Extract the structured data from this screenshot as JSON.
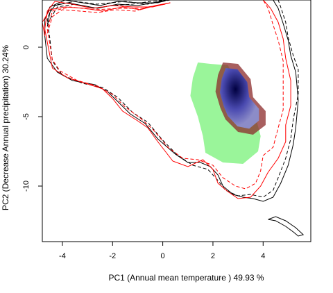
{
  "chart_data": {
    "type": "scatter",
    "title": "",
    "xlabel": "PC1 (Annual mean temperature ) 49.93 %",
    "ylabel": "PC2 (Decrease Annual precipitation) 30.24%",
    "xlim": [
      -4.8,
      5.9
    ],
    "ylim": [
      -14.0,
      3.4
    ],
    "x_ticks": [
      -4,
      -2,
      0,
      2,
      4
    ],
    "y_ticks": [
      0,
      -5,
      -10
    ],
    "x_tick_labels": [
      "-4",
      "-2",
      "0",
      "2",
      "4"
    ],
    "y_tick_labels": [
      "0",
      "-5",
      "-10"
    ],
    "grid": false,
    "colors": {
      "overlap_green": "#9af59a",
      "density_blue": "#1a1a8a",
      "density_red": "#8b2a2a",
      "envelope_black": "#000000",
      "envelope_red": "#ff0000"
    },
    "series": [
      {
        "style": "solid",
        "color": "#000000",
        "points": [
          [
            -4.6,
            1.5
          ],
          [
            -4.5,
            2.5
          ],
          [
            -4.3,
            3.0
          ],
          [
            -3.8,
            3.2
          ],
          [
            -3.2,
            3.0
          ],
          [
            -2.6,
            2.8
          ],
          [
            -1.8,
            3.1
          ],
          [
            -1.0,
            3.0
          ],
          [
            -0.4,
            3.2
          ],
          [
            0.2,
            3.4
          ],
          [
            -0.2,
            3.2
          ],
          [
            -1.0,
            3.2
          ],
          [
            -1.8,
            3.3
          ],
          [
            -2.5,
            3.0
          ],
          [
            -3.2,
            3.2
          ],
          [
            -3.9,
            3.4
          ],
          [
            -4.5,
            2.9
          ],
          [
            -4.7,
            2.0
          ],
          [
            -4.7,
            0.8
          ],
          [
            -4.6,
            -0.8
          ],
          [
            -4.2,
            -1.8
          ],
          [
            -3.6,
            -2.4
          ],
          [
            -2.7,
            -2.7
          ],
          [
            -2.2,
            -3.2
          ],
          [
            -1.8,
            -3.9
          ],
          [
            -1.3,
            -4.8
          ],
          [
            -0.7,
            -5.5
          ],
          [
            -0.2,
            -6.6
          ],
          [
            0.5,
            -7.7
          ],
          [
            1.0,
            -8.3
          ],
          [
            1.5,
            -8.3
          ],
          [
            1.9,
            -8.6
          ],
          [
            2.2,
            -9.2
          ],
          [
            2.4,
            -10.0
          ],
          [
            2.8,
            -10.6
          ],
          [
            3.2,
            -10.8
          ],
          [
            3.6,
            -10.9
          ],
          [
            4.0,
            -11.1
          ],
          [
            4.4,
            -10.8
          ],
          [
            4.7,
            -9.8
          ],
          [
            5.0,
            -8.5
          ],
          [
            5.2,
            -7.0
          ],
          [
            5.3,
            -5.8
          ],
          [
            5.4,
            -3.8
          ],
          [
            5.3,
            -1.8
          ],
          [
            5.1,
            -0.6
          ],
          [
            5.0,
            0.5
          ],
          [
            4.8,
            1.7
          ],
          [
            4.6,
            2.8
          ],
          [
            4.4,
            3.4
          ]
        ]
      },
      {
        "style": "dashed",
        "color": "#000000",
        "points": [
          [
            -4.6,
            1.7
          ],
          [
            -4.2,
            2.9
          ],
          [
            -3.5,
            3.1
          ],
          [
            -2.8,
            2.8
          ],
          [
            -2.0,
            3.0
          ],
          [
            -1.2,
            3.1
          ],
          [
            -0.5,
            3.3
          ],
          [
            0.3,
            3.4
          ],
          [
            -0.6,
            3.1
          ],
          [
            -1.5,
            3.3
          ],
          [
            -2.6,
            3.1
          ],
          [
            -3.5,
            3.3
          ],
          [
            -4.4,
            3.0
          ],
          [
            -4.6,
            2.0
          ],
          [
            -4.5,
            0.6
          ],
          [
            -4.4,
            -1.0
          ],
          [
            -4.0,
            -2.0
          ],
          [
            -3.2,
            -2.6
          ],
          [
            -2.4,
            -2.9
          ],
          [
            -1.8,
            -3.6
          ],
          [
            -1.2,
            -4.7
          ],
          [
            -0.6,
            -5.4
          ],
          [
            0.0,
            -6.7
          ],
          [
            0.6,
            -7.8
          ],
          [
            1.2,
            -8.5
          ],
          [
            1.8,
            -8.8
          ],
          [
            2.2,
            -9.6
          ],
          [
            2.5,
            -10.3
          ],
          [
            3.0,
            -10.7
          ],
          [
            3.5,
            -10.6
          ],
          [
            4.0,
            -10.8
          ],
          [
            4.4,
            -10.3
          ],
          [
            4.6,
            -9.4
          ],
          [
            4.9,
            -8.0
          ],
          [
            5.1,
            -6.6
          ],
          [
            5.2,
            -5.2
          ],
          [
            5.4,
            -3.4
          ],
          [
            5.4,
            -1.6
          ],
          [
            5.2,
            -0.6
          ],
          [
            5.0,
            0.7
          ],
          [
            4.9,
            1.8
          ],
          [
            4.7,
            2.9
          ],
          [
            4.6,
            3.4
          ]
        ]
      },
      {
        "style": "solid",
        "color": "#ff0000",
        "points": [
          [
            -4.7,
            0.8
          ],
          [
            -4.8,
            1.8
          ],
          [
            -4.5,
            2.7
          ],
          [
            -3.9,
            2.9
          ],
          [
            -3.1,
            2.8
          ],
          [
            -2.4,
            2.6
          ],
          [
            -1.6,
            2.9
          ],
          [
            -0.9,
            2.7
          ],
          [
            -0.3,
            3.0
          ],
          [
            0.3,
            3.2
          ],
          [
            -0.4,
            2.9
          ],
          [
            -1.2,
            2.9
          ],
          [
            -2.0,
            3.0
          ],
          [
            -2.8,
            2.8
          ],
          [
            -3.6,
            3.1
          ],
          [
            -4.3,
            3.3
          ],
          [
            -4.6,
            2.6
          ],
          [
            -4.7,
            1.3
          ],
          [
            -4.5,
            -0.6
          ],
          [
            -4.4,
            -1.5
          ],
          [
            -3.8,
            -2.2
          ],
          [
            -2.9,
            -2.7
          ],
          [
            -2.4,
            -3.0
          ],
          [
            -2.0,
            -3.7
          ],
          [
            -1.6,
            -4.6
          ],
          [
            -1.0,
            -5.3
          ],
          [
            -0.6,
            -5.8
          ],
          [
            -0.2,
            -6.8
          ],
          [
            0.4,
            -8.2
          ],
          [
            1.0,
            -8.6
          ],
          [
            1.6,
            -8.1
          ],
          [
            2.0,
            -8.8
          ],
          [
            2.2,
            -9.8
          ],
          [
            2.6,
            -10.4
          ],
          [
            3.0,
            -10.9
          ],
          [
            3.5,
            -10.8
          ],
          [
            3.9,
            -10.0
          ],
          [
            4.2,
            -9.0
          ],
          [
            4.6,
            -8.0
          ],
          [
            4.9,
            -6.8
          ],
          [
            4.9,
            -5.6
          ],
          [
            5.1,
            -4.2
          ],
          [
            5.1,
            -2.4
          ],
          [
            4.9,
            -0.8
          ],
          [
            4.8,
            0.6
          ],
          [
            4.6,
            1.8
          ],
          [
            4.3,
            2.8
          ],
          [
            4.0,
            3.4
          ]
        ]
      },
      {
        "style": "dashed",
        "color": "#ff0000",
        "points": [
          [
            -4.6,
            1.0
          ],
          [
            -4.4,
            2.2
          ],
          [
            -4.0,
            2.7
          ],
          [
            -3.3,
            2.6
          ],
          [
            -2.6,
            2.5
          ],
          [
            -1.9,
            2.7
          ],
          [
            -1.1,
            2.6
          ],
          [
            -0.6,
            2.9
          ],
          [
            0.1,
            3.1
          ],
          [
            -0.8,
            2.8
          ],
          [
            -1.7,
            2.8
          ],
          [
            -2.7,
            2.7
          ],
          [
            -3.7,
            2.9
          ],
          [
            -4.4,
            2.6
          ],
          [
            -4.6,
            1.3
          ],
          [
            -4.4,
            -0.9
          ],
          [
            -4.1,
            -1.7
          ],
          [
            -3.4,
            -2.4
          ],
          [
            -2.6,
            -2.8
          ],
          [
            -2.0,
            -3.4
          ],
          [
            -1.5,
            -4.3
          ],
          [
            -0.9,
            -5.1
          ],
          [
            -0.4,
            -5.9
          ],
          [
            0.2,
            -7.2
          ],
          [
            0.8,
            -8.0
          ],
          [
            1.4,
            -8.1
          ],
          [
            2.0,
            -8.5
          ],
          [
            2.4,
            -9.4
          ],
          [
            2.9,
            -10.0
          ],
          [
            3.3,
            -10.2
          ],
          [
            3.7,
            -9.8
          ],
          [
            3.9,
            -8.9
          ],
          [
            4.0,
            -7.8
          ],
          [
            4.4,
            -7.2
          ],
          [
            4.6,
            -5.8
          ],
          [
            4.8,
            -4.5
          ],
          [
            4.8,
            -3.0
          ],
          [
            4.8,
            -1.0
          ],
          [
            4.6,
            0.5
          ],
          [
            4.4,
            1.6
          ],
          [
            4.2,
            2.8
          ],
          [
            4.0,
            3.4
          ]
        ]
      },
      {
        "style": "solid",
        "color": "#000000",
        "points": [
          [
            4.2,
            -12.4
          ],
          [
            4.5,
            -12.5
          ],
          [
            4.9,
            -12.9
          ],
          [
            5.2,
            -13.3
          ],
          [
            5.4,
            -13.6
          ],
          [
            5.6,
            -13.5
          ],
          [
            5.3,
            -13.0
          ],
          [
            4.9,
            -12.5
          ],
          [
            4.5,
            -12.2
          ],
          [
            4.2,
            -12.4
          ]
        ]
      }
    ],
    "overlap_region": [
      [
        1.4,
        -1.1
      ],
      [
        1.9,
        -1.2
      ],
      [
        2.6,
        -1.3
      ],
      [
        2.9,
        -2.4
      ],
      [
        3.3,
        -3.8
      ],
      [
        3.7,
        -5.0
      ],
      [
        3.9,
        -6.4
      ],
      [
        3.8,
        -7.5
      ],
      [
        3.2,
        -8.4
      ],
      [
        2.4,
        -8.3
      ],
      [
        1.7,
        -7.6
      ],
      [
        1.6,
        -6.4
      ],
      [
        1.4,
        -5.0
      ],
      [
        1.1,
        -3.5
      ],
      [
        1.2,
        -2.2
      ]
    ],
    "density_core": [
      [
        2.4,
        -1.1
      ],
      [
        3.0,
        -1.2
      ],
      [
        3.5,
        -2.3
      ],
      [
        3.6,
        -3.6
      ],
      [
        4.1,
        -4.6
      ],
      [
        4.1,
        -5.6
      ],
      [
        3.6,
        -6.3
      ],
      [
        3.0,
        -6.1
      ],
      [
        2.5,
        -5.2
      ],
      [
        2.3,
        -4.4
      ],
      [
        2.1,
        -3.2
      ],
      [
        2.2,
        -2.0
      ]
    ]
  }
}
